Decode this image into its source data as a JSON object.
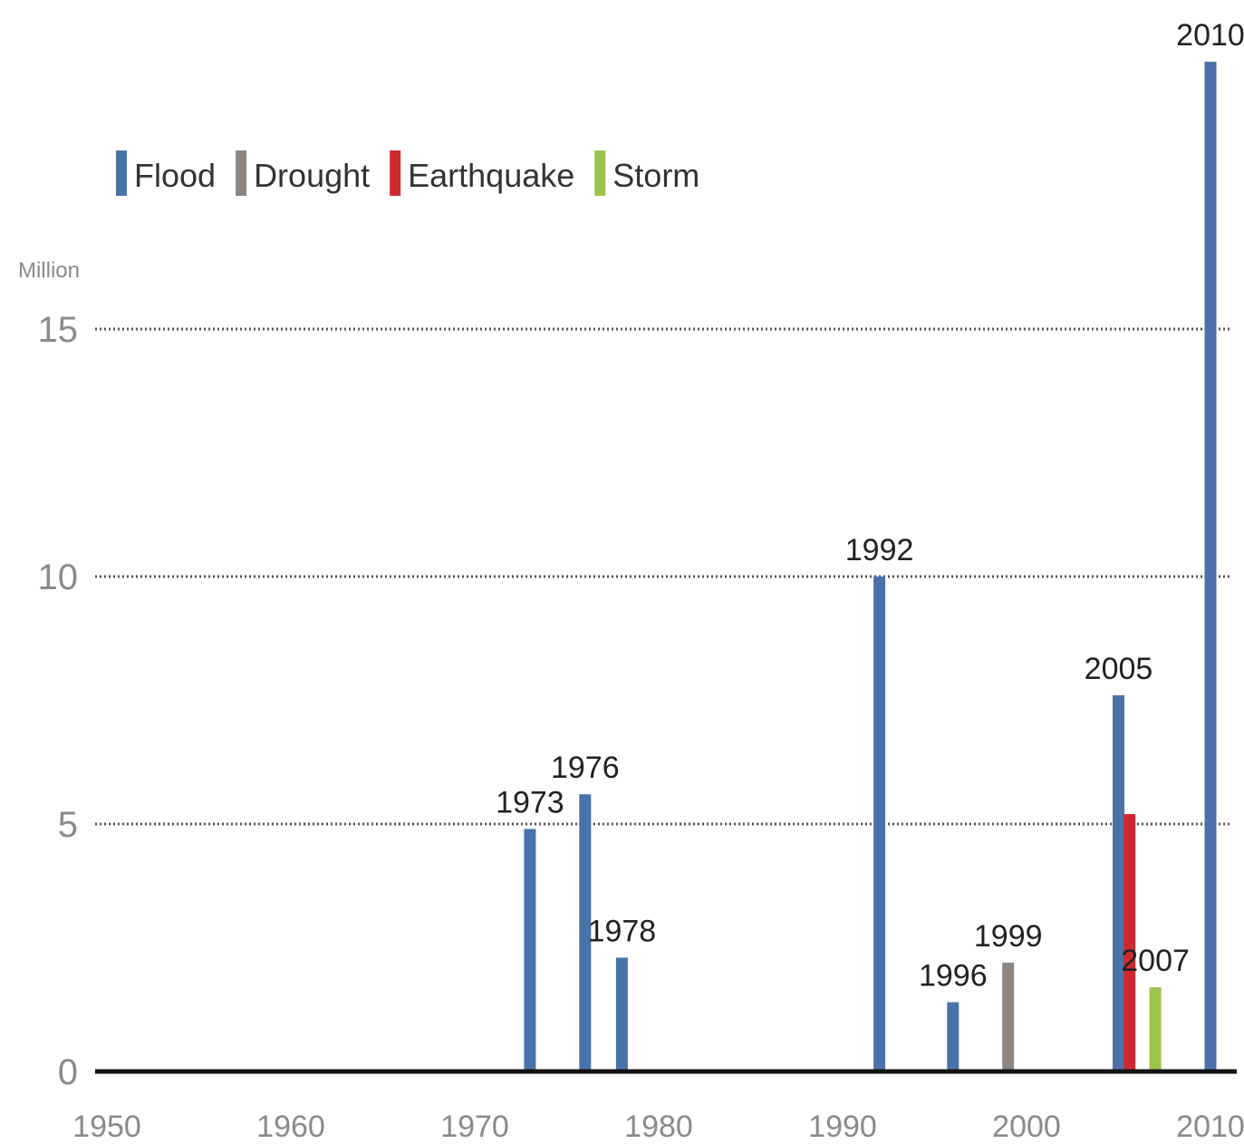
{
  "chart_data": {
    "type": "bar",
    "ylabel": "Million",
    "ylim": [
      0,
      20
    ],
    "xlim": [
      1950,
      2011
    ],
    "yticks": [
      0,
      5,
      10,
      15
    ],
    "xticks": [
      1950,
      1960,
      1970,
      1980,
      1990,
      2000,
      2010
    ],
    "grid": true,
    "legend_position": "top-left",
    "series": [
      {
        "name": "Flood",
        "color": "#4a72a8"
      },
      {
        "name": "Drought",
        "color": "#8c8580"
      },
      {
        "name": "Earthquake",
        "color": "#cc2a30"
      },
      {
        "name": "Storm",
        "color": "#9cc44a"
      }
    ],
    "bars": [
      {
        "label": "1973",
        "x": 1973,
        "value": 4.9,
        "series": "Flood"
      },
      {
        "label": "1976",
        "x": 1976,
        "value": 5.6,
        "series": "Flood"
      },
      {
        "label": "1978",
        "x": 1978,
        "value": 2.3,
        "series": "Flood"
      },
      {
        "label": "1992",
        "x": 1992,
        "value": 10.0,
        "series": "Flood"
      },
      {
        "label": "1996",
        "x": 1996,
        "value": 1.4,
        "series": "Flood"
      },
      {
        "label": "1999",
        "x": 1999,
        "value": 2.2,
        "series": "Drought"
      },
      {
        "label": "2005",
        "x": 2005,
        "value": 7.6,
        "series": "Flood"
      },
      {
        "label": "",
        "x": 2005.6,
        "value": 5.2,
        "series": "Earthquake"
      },
      {
        "label": "2007",
        "x": 2007,
        "value": 1.7,
        "series": "Storm"
      },
      {
        "label": "2010",
        "x": 2010,
        "value": 20.4,
        "series": "Flood"
      }
    ]
  }
}
